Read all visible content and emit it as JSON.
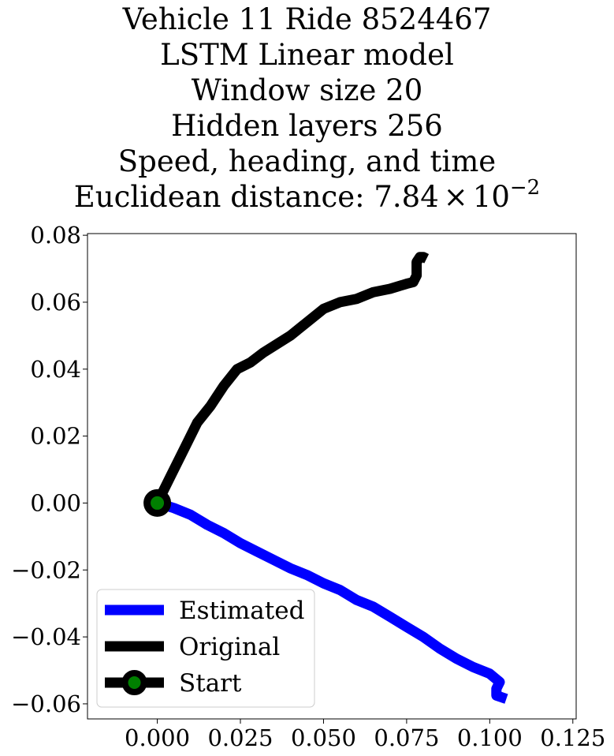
{
  "chart_data": {
    "type": "line",
    "title_lines": [
      "Vehicle 11 Ride 8524467",
      "LSTM Linear model",
      "Window size 20",
      "Hidden layers 256",
      "Speed, heading, and time"
    ],
    "title_distance_prefix": "Euclidean distance: ",
    "title_distance_mantissa": "7.84",
    "title_distance_times": "×",
    "title_distance_base": "10",
    "title_distance_exponent": "−2",
    "xlabel": "",
    "ylabel": "",
    "xlim": [
      -0.021,
      0.126
    ],
    "ylim": [
      -0.0645,
      0.0805
    ],
    "x_ticks": [
      0.0,
      0.025,
      0.05,
      0.075,
      0.1,
      0.125
    ],
    "x_tick_labels": [
      "0.000",
      "0.025",
      "0.050",
      "0.075",
      "0.100",
      "0.125"
    ],
    "y_ticks": [
      -0.06,
      -0.04,
      -0.02,
      0.0,
      0.02,
      0.04,
      0.06,
      0.08
    ],
    "y_tick_labels": [
      "−0.06",
      "−0.04",
      "−0.02",
      "0.00",
      "0.02",
      "0.04",
      "0.06",
      "0.08"
    ],
    "grid": false,
    "legend_position": "lower-left",
    "series": [
      {
        "name": "Estimated",
        "color": "#0000ff",
        "x": [
          0.0,
          0.005,
          0.01,
          0.015,
          0.02,
          0.025,
          0.03,
          0.035,
          0.04,
          0.045,
          0.05,
          0.055,
          0.06,
          0.065,
          0.07,
          0.075,
          0.08,
          0.085,
          0.09,
          0.095,
          0.1,
          0.103,
          0.102,
          0.102,
          0.105
        ],
        "y": [
          0.0,
          -0.0015,
          -0.0035,
          -0.0065,
          -0.009,
          -0.012,
          -0.0145,
          -0.017,
          -0.0195,
          -0.0215,
          -0.024,
          -0.026,
          -0.029,
          -0.031,
          -0.034,
          -0.037,
          -0.04,
          -0.0435,
          -0.0465,
          -0.049,
          -0.051,
          -0.0535,
          -0.0555,
          -0.0575,
          -0.0585
        ]
      },
      {
        "name": "Original",
        "color": "#000000",
        "x": [
          0.0,
          0.004,
          0.008,
          0.012,
          0.016,
          0.02,
          0.024,
          0.028,
          0.032,
          0.036,
          0.04,
          0.045,
          0.05,
          0.055,
          0.06,
          0.065,
          0.07,
          0.075,
          0.077,
          0.078,
          0.078,
          0.079,
          0.08,
          0.081
        ],
        "y": [
          0.0,
          0.008,
          0.016,
          0.024,
          0.029,
          0.035,
          0.04,
          0.042,
          0.045,
          0.0475,
          0.05,
          0.054,
          0.058,
          0.06,
          0.061,
          0.063,
          0.064,
          0.0655,
          0.066,
          0.068,
          0.072,
          0.0735,
          0.0735,
          0.073
        ]
      }
    ],
    "start_marker": {
      "name": "Start",
      "x": 0.0,
      "y": 0.0,
      "edge_color": "#000000",
      "face_color": "#008000"
    }
  }
}
